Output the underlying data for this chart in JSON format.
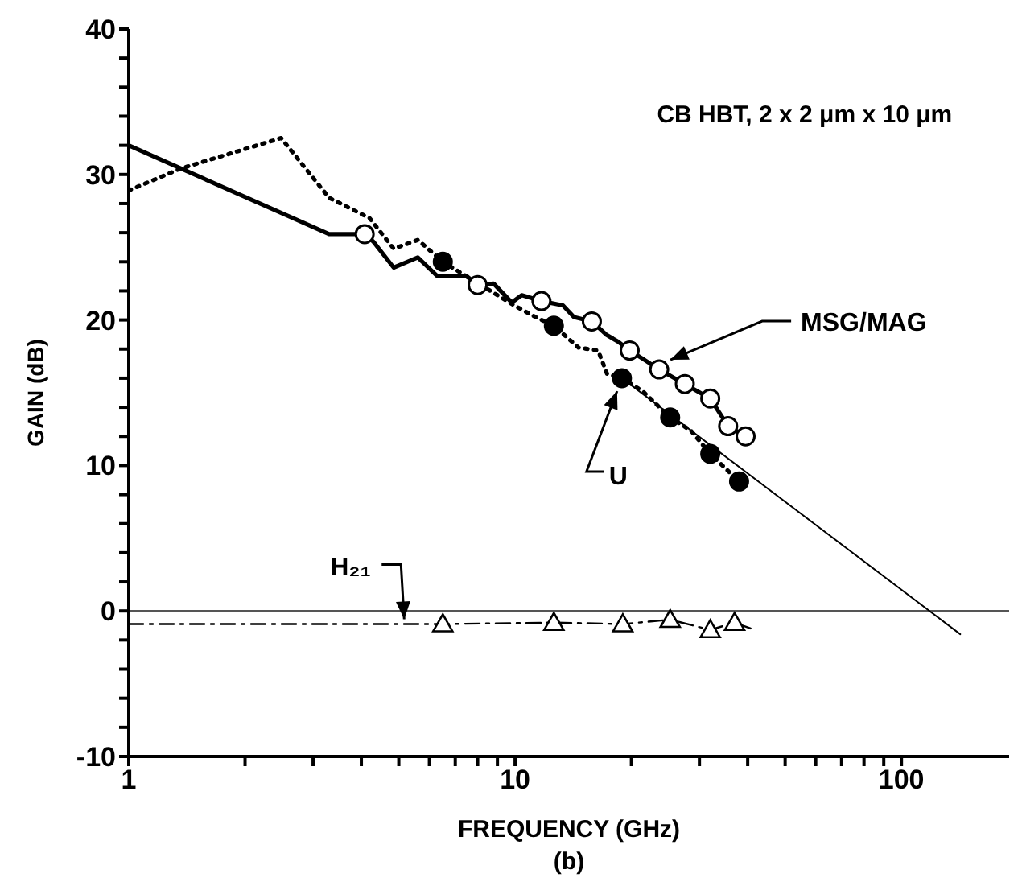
{
  "chart_data": {
    "type": "line",
    "xlabel": "FREQUENCY (GHz)",
    "ylabel": "GAIN (dB)",
    "log": "x",
    "xlim": [
      1,
      190
    ],
    "ylim": [
      -10,
      40
    ],
    "xticks": [
      1,
      {
        "value": 2,
        "label": null
      },
      {
        "value": 3,
        "label": null
      },
      {
        "value": 4,
        "label": null
      },
      {
        "value": 5,
        "label": null
      },
      {
        "value": 6,
        "label": null
      },
      {
        "value": 7,
        "label": null
      },
      {
        "value": 8,
        "label": null
      },
      {
        "value": 9,
        "label": null
      },
      10,
      {
        "value": 20,
        "label": null
      },
      {
        "value": 30,
        "label": null
      },
      {
        "value": 40,
        "label": null
      },
      {
        "value": 50,
        "label": null
      },
      {
        "value": 60,
        "label": null
      },
      {
        "value": 70,
        "label": null
      },
      {
        "value": 80,
        "label": null
      },
      {
        "value": 90,
        "label": null
      },
      100
    ],
    "yticks": [
      -10,
      {
        "value": -8,
        "label": null
      },
      {
        "value": -6,
        "label": null
      },
      {
        "value": -4,
        "label": null
      },
      {
        "value": -2,
        "label": null
      },
      0,
      {
        "value": 2,
        "label": null
      },
      {
        "value": 4,
        "label": null
      },
      {
        "value": 6,
        "label": null
      },
      {
        "value": 8,
        "label": null
      },
      10,
      {
        "value": 12,
        "label": null
      },
      {
        "value": 14,
        "label": null
      },
      {
        "value": 16,
        "label": null
      },
      {
        "value": 18,
        "label": null
      },
      20,
      {
        "value": 22,
        "label": null
      },
      {
        "value": 24,
        "label": null
      },
      {
        "value": 26,
        "label": null
      },
      {
        "value": 28,
        "label": null
      },
      30,
      {
        "value": 32,
        "label": null
      },
      {
        "value": 34,
        "label": null
      },
      {
        "value": 36,
        "label": null
      },
      {
        "value": 38,
        "label": null
      },
      40
    ],
    "grid": false,
    "ref_lines": [
      {
        "axis": "y",
        "value": 0,
        "color": "#555555"
      }
    ],
    "series": [
      {
        "name": "MSG/MAG",
        "type": "line",
        "color": "#000000",
        "line_style": "solid",
        "marker": "none",
        "x": [
          1,
          3.3,
          4.08,
          4.29,
          4.85,
          5.6,
          6.3,
          7.5,
          8.0,
          8.8,
          9.8,
          10.4,
          11.7,
          13.3,
          14.2,
          15.8,
          17.2,
          18.5,
          19.8,
          21.5,
          23.6,
          27.5,
          32,
          35.6,
          39.5
        ],
        "values": [
          32.0,
          25.9,
          25.9,
          25.4,
          23.6,
          24.3,
          23.0,
          23.0,
          22.4,
          22.5,
          21.2,
          21.7,
          21.3,
          21.0,
          20.2,
          19.9,
          19.0,
          18.5,
          17.9,
          17.3,
          16.6,
          15.6,
          14.6,
          12.7,
          12.0
        ]
      },
      {
        "name": "U",
        "type": "line",
        "color": "#000000",
        "line_style": "dotted",
        "marker": "none",
        "x": [
          1,
          1.36,
          2.48,
          3.3,
          4.2,
          4.85,
          5.6,
          6.5,
          7.7,
          9.95,
          11.3,
          12.6,
          14.6,
          16.4,
          17.3,
          18.9,
          21.4,
          25.2,
          28.5,
          32,
          38
        ],
        "values": [
          28.9,
          30.4,
          32.5,
          28.4,
          27.0,
          24.9,
          25.5,
          24.0,
          22.8,
          21.0,
          20.2,
          19.6,
          18.1,
          17.9,
          16.3,
          16.0,
          15.1,
          13.3,
          12.4,
          10.8,
          8.9
        ]
      },
      {
        "type": "line",
        "color": "#000000",
        "line_style": "solid",
        "marker": "none",
        "x": [
          18.9,
          142
        ],
        "values": [
          16.0,
          -1.6
        ]
      },
      {
        "name": "H₂₁",
        "type": "line",
        "color": "#000000",
        "line_style": "dashed",
        "marker": "none",
        "x": [
          1,
          6.5,
          12.6,
          19,
          25.2,
          32,
          37,
          40.7
        ],
        "values": [
          -0.9,
          -0.9,
          -0.8,
          -0.9,
          -0.6,
          -1.3,
          -0.8,
          -1.2
        ]
      },
      {
        "type": "scatter",
        "color": "#ffffff",
        "marker": "circle",
        "x": [
          4.08,
          8.0,
          11.7,
          15.8,
          19.8,
          23.6,
          27.5,
          32,
          35.6,
          39.5
        ],
        "values": [
          25.9,
          22.4,
          21.3,
          19.9,
          17.9,
          16.6,
          15.6,
          14.6,
          12.7,
          12.0
        ]
      },
      {
        "type": "scatter",
        "color": "#000000",
        "marker": "circle",
        "x": [
          6.5,
          12.6,
          18.9,
          25.2,
          32,
          38
        ],
        "values": [
          24.0,
          19.6,
          16.0,
          13.3,
          10.8,
          8.9
        ]
      },
      {
        "type": "scatter",
        "color": "#ffffff",
        "marker": "triangle",
        "x": [
          6.5,
          12.6,
          19,
          25.2,
          32,
          37
        ],
        "values": [
          -0.9,
          -0.8,
          -0.9,
          -0.6,
          -1.3,
          -0.8
        ]
      }
    ],
    "annotations": [
      "CB HBT, 2 x 2 μm x 10 μm",
      "(b)"
    ]
  }
}
